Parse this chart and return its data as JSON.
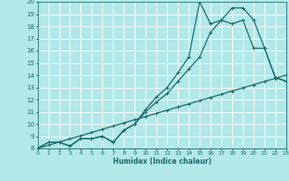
{
  "xlabel": "Humidex (Indice chaleur)",
  "bg_color": "#b2e8e8",
  "grid_color": "#ffffff",
  "line_color": "#1a6b6b",
  "x": [
    0,
    1,
    2,
    3,
    4,
    5,
    6,
    7,
    8,
    9,
    10,
    11,
    12,
    13,
    14,
    15,
    16,
    17,
    18,
    19,
    20,
    21,
    22,
    23
  ],
  "y_straight": [
    8,
    8.26,
    8.52,
    8.78,
    9.04,
    9.3,
    9.57,
    9.83,
    10.09,
    10.35,
    10.61,
    10.87,
    11.13,
    11.39,
    11.65,
    11.91,
    12.17,
    12.43,
    12.7,
    12.96,
    13.22,
    13.48,
    13.74,
    14.0
  ],
  "y_mid": [
    8,
    8.5,
    8.5,
    8.2,
    8.8,
    8.8,
    9.0,
    8.5,
    9.5,
    10.0,
    11.0,
    11.8,
    12.5,
    13.5,
    14.5,
    15.5,
    17.5,
    18.5,
    18.2,
    18.5,
    16.2,
    16.2,
    13.8,
    13.5
  ],
  "y_max": [
    8,
    8.5,
    8.5,
    8.2,
    8.8,
    8.8,
    9.0,
    8.5,
    9.5,
    10.0,
    11.2,
    12.2,
    13.0,
    14.2,
    15.5,
    20.0,
    18.2,
    18.5,
    19.5,
    19.5,
    18.5,
    16.2,
    13.8,
    13.5
  ],
  "ylim": [
    8,
    20
  ],
  "xlim": [
    0,
    23
  ],
  "yticks": [
    8,
    9,
    10,
    11,
    12,
    13,
    14,
    15,
    16,
    17,
    18,
    19,
    20
  ],
  "xticks": [
    0,
    1,
    2,
    3,
    4,
    5,
    6,
    7,
    8,
    9,
    10,
    11,
    12,
    13,
    14,
    15,
    16,
    17,
    18,
    19,
    20,
    21,
    22,
    23
  ]
}
